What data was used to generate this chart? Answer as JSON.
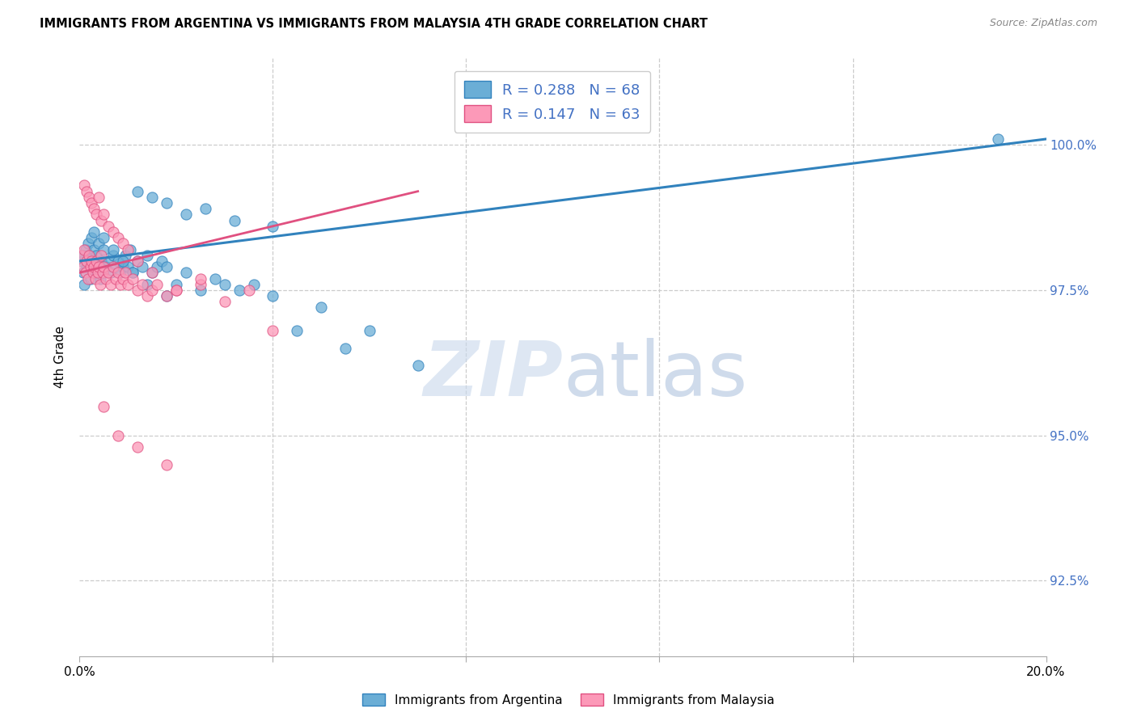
{
  "title": "IMMIGRANTS FROM ARGENTINA VS IMMIGRANTS FROM MALAYSIA 4TH GRADE CORRELATION CHART",
  "source": "Source: ZipAtlas.com",
  "ylabel": "4th Grade",
  "y_tick_values": [
    92.5,
    95.0,
    97.5,
    100.0
  ],
  "x_range": [
    0.0,
    20.0
  ],
  "y_range": [
    91.2,
    101.5
  ],
  "legend_argentina": "Immigrants from Argentina",
  "legend_malaysia": "Immigrants from Malaysia",
  "R_argentina": 0.288,
  "N_argentina": 68,
  "R_malaysia": 0.147,
  "N_malaysia": 63,
  "color_argentina": "#6baed6",
  "color_malaysia": "#fc99b8",
  "edge_argentina": "#3182bd",
  "edge_malaysia": "#e05080",
  "trendline_argentina": "#3182bd",
  "trendline_malaysia": "#e05080",
  "trendline_arg_x0": 0.0,
  "trendline_arg_y0": 98.0,
  "trendline_arg_x1": 20.0,
  "trendline_arg_y1": 100.1,
  "trendline_mal_x0": 0.0,
  "trendline_mal_y0": 97.8,
  "trendline_mal_x1": 7.0,
  "trendline_mal_y1": 99.2,
  "scatter_argentina_x": [
    0.05,
    0.08,
    0.1,
    0.1,
    0.12,
    0.15,
    0.15,
    0.18,
    0.2,
    0.22,
    0.25,
    0.28,
    0.3,
    0.32,
    0.35,
    0.38,
    0.4,
    0.42,
    0.45,
    0.48,
    0.5,
    0.55,
    0.6,
    0.65,
    0.7,
    0.75,
    0.8,
    0.85,
    0.9,
    0.95,
    1.0,
    1.05,
    1.1,
    1.2,
    1.3,
    1.4,
    1.5,
    1.6,
    1.7,
    1.8,
    2.0,
    2.2,
    2.5,
    2.8,
    3.0,
    3.3,
    3.6,
    4.0,
    4.5,
    5.0,
    5.5,
    6.0,
    7.0,
    1.2,
    1.5,
    1.8,
    2.2,
    2.6,
    3.2,
    4.0,
    0.3,
    0.5,
    0.7,
    0.9,
    1.1,
    1.4,
    1.8,
    19.0
  ],
  "scatter_argentina_y": [
    98.0,
    97.8,
    98.1,
    97.6,
    98.2,
    98.0,
    97.9,
    98.3,
    98.1,
    97.7,
    98.4,
    98.0,
    98.2,
    97.8,
    98.1,
    97.9,
    98.3,
    97.7,
    98.0,
    97.8,
    98.2,
    97.9,
    98.0,
    97.8,
    98.1,
    97.9,
    98.0,
    97.8,
    97.9,
    98.1,
    97.9,
    98.2,
    97.8,
    98.0,
    97.9,
    98.1,
    97.8,
    97.9,
    98.0,
    97.9,
    97.6,
    97.8,
    97.5,
    97.7,
    97.6,
    97.5,
    97.6,
    97.4,
    96.8,
    97.2,
    96.5,
    96.8,
    96.2,
    99.2,
    99.1,
    99.0,
    98.8,
    98.9,
    98.7,
    98.6,
    98.5,
    98.4,
    98.2,
    98.0,
    97.8,
    97.6,
    97.4,
    100.1
  ],
  "scatter_malaysia_x": [
    0.05,
    0.08,
    0.1,
    0.12,
    0.15,
    0.18,
    0.2,
    0.22,
    0.25,
    0.28,
    0.3,
    0.32,
    0.35,
    0.38,
    0.4,
    0.42,
    0.45,
    0.48,
    0.5,
    0.55,
    0.6,
    0.65,
    0.7,
    0.75,
    0.8,
    0.85,
    0.9,
    0.95,
    1.0,
    1.1,
    1.2,
    1.3,
    1.4,
    1.5,
    1.6,
    1.8,
    2.0,
    2.5,
    3.0,
    3.5,
    0.1,
    0.15,
    0.2,
    0.25,
    0.3,
    0.35,
    0.4,
    0.45,
    0.5,
    0.6,
    0.7,
    0.8,
    0.9,
    1.0,
    1.2,
    1.5,
    2.0,
    0.5,
    0.8,
    1.2,
    1.8,
    2.5,
    4.0
  ],
  "scatter_malaysia_y": [
    98.1,
    97.9,
    98.2,
    97.8,
    98.0,
    97.7,
    98.1,
    97.9,
    98.0,
    97.8,
    97.9,
    97.7,
    98.0,
    97.8,
    97.9,
    97.6,
    98.1,
    97.8,
    97.9,
    97.7,
    97.8,
    97.6,
    97.9,
    97.7,
    97.8,
    97.6,
    97.7,
    97.8,
    97.6,
    97.7,
    97.5,
    97.6,
    97.4,
    97.5,
    97.6,
    97.4,
    97.5,
    97.6,
    97.3,
    97.5,
    99.3,
    99.2,
    99.1,
    99.0,
    98.9,
    98.8,
    99.1,
    98.7,
    98.8,
    98.6,
    98.5,
    98.4,
    98.3,
    98.2,
    98.0,
    97.8,
    97.5,
    95.5,
    95.0,
    94.8,
    94.5,
    97.7,
    96.8
  ],
  "watermark_zip": "ZIP",
  "watermark_atlas": "atlas"
}
